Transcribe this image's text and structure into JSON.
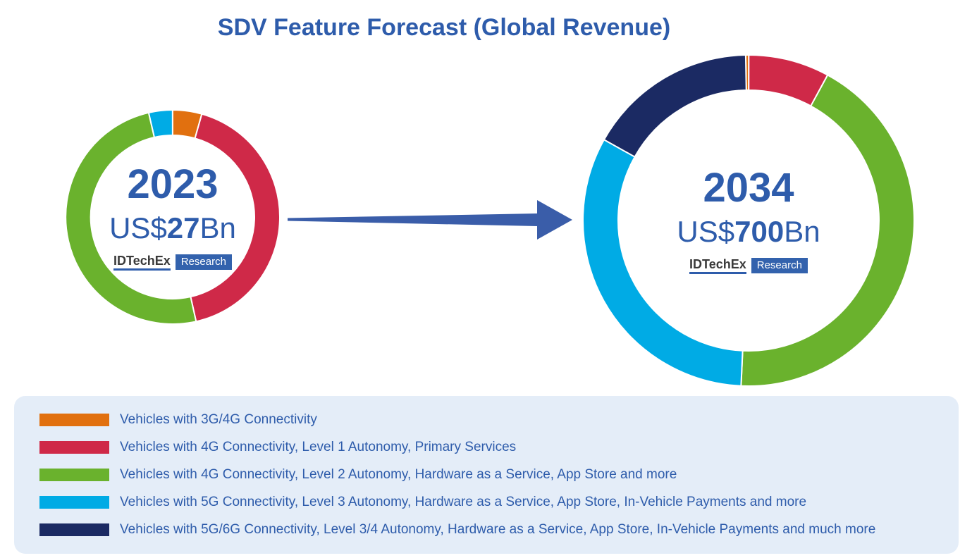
{
  "title": "SDV Feature Forecast (Global Revenue)",
  "colors": {
    "accent_blue": "#2e5cab",
    "arrow_blue": "#3a5da9",
    "legend_bg": "#e4edf8",
    "logo_ink": "#3a3a3a",
    "logo_box_blue": "#3362ad",
    "orange": "#e1700f",
    "crimson": "#cf2948",
    "green": "#6ab22d",
    "cyan": "#00abe5",
    "navy": "#1b2a63"
  },
  "logo": {
    "brand": "IDTechEx",
    "sub": "Research"
  },
  "chart_data": {
    "type": "pie",
    "subtype": "donut-pair",
    "title": "SDV Feature Forecast (Global Revenue)",
    "legend_position": "bottom",
    "series_legend": [
      {
        "color_key": "orange",
        "label": "Vehicles with 3G/4G Connectivity"
      },
      {
        "color_key": "crimson",
        "label": "Vehicles with 4G Connectivity, Level 1 Autonomy, Primary Services"
      },
      {
        "color_key": "green",
        "label": "Vehicles with 4G Connectivity, Level 2 Autonomy, Hardware as a Service, App Store and more"
      },
      {
        "color_key": "cyan",
        "label": "Vehicles with 5G Connectivity, Level 3 Autonomy, Hardware as a Service, App Store, In-Vehicle Payments and more"
      },
      {
        "color_key": "navy",
        "label": "Vehicles with 5G/6G Connectivity, Level 3/4 Autonomy, Hardware as a Service, App Store, In-Vehicle Payments and much more"
      }
    ],
    "donuts": [
      {
        "year": "2023",
        "value_prefix": "US$",
        "value_number": "27",
        "value_suffix": "Bn",
        "total_label": "US$27Bn",
        "start_angle_deg": 347,
        "slices": [
          {
            "color_key": "cyan",
            "pct": 3.6
          },
          {
            "color_key": "orange",
            "pct": 4.4
          },
          {
            "color_key": "crimson",
            "pct": 42.1
          },
          {
            "color_key": "green",
            "pct": 49.9
          }
        ]
      },
      {
        "year": "2034",
        "value_prefix": "US$",
        "value_number": "700",
        "value_suffix": "Bn",
        "total_label": "US$700Bn",
        "start_angle_deg": 359,
        "slices": [
          {
            "color_key": "orange",
            "pct": 0.3
          },
          {
            "color_key": "crimson",
            "pct": 7.9
          },
          {
            "color_key": "green",
            "pct": 42.8
          },
          {
            "color_key": "cyan",
            "pct": 32.4
          },
          {
            "color_key": "navy",
            "pct": 16.6
          }
        ]
      }
    ]
  }
}
